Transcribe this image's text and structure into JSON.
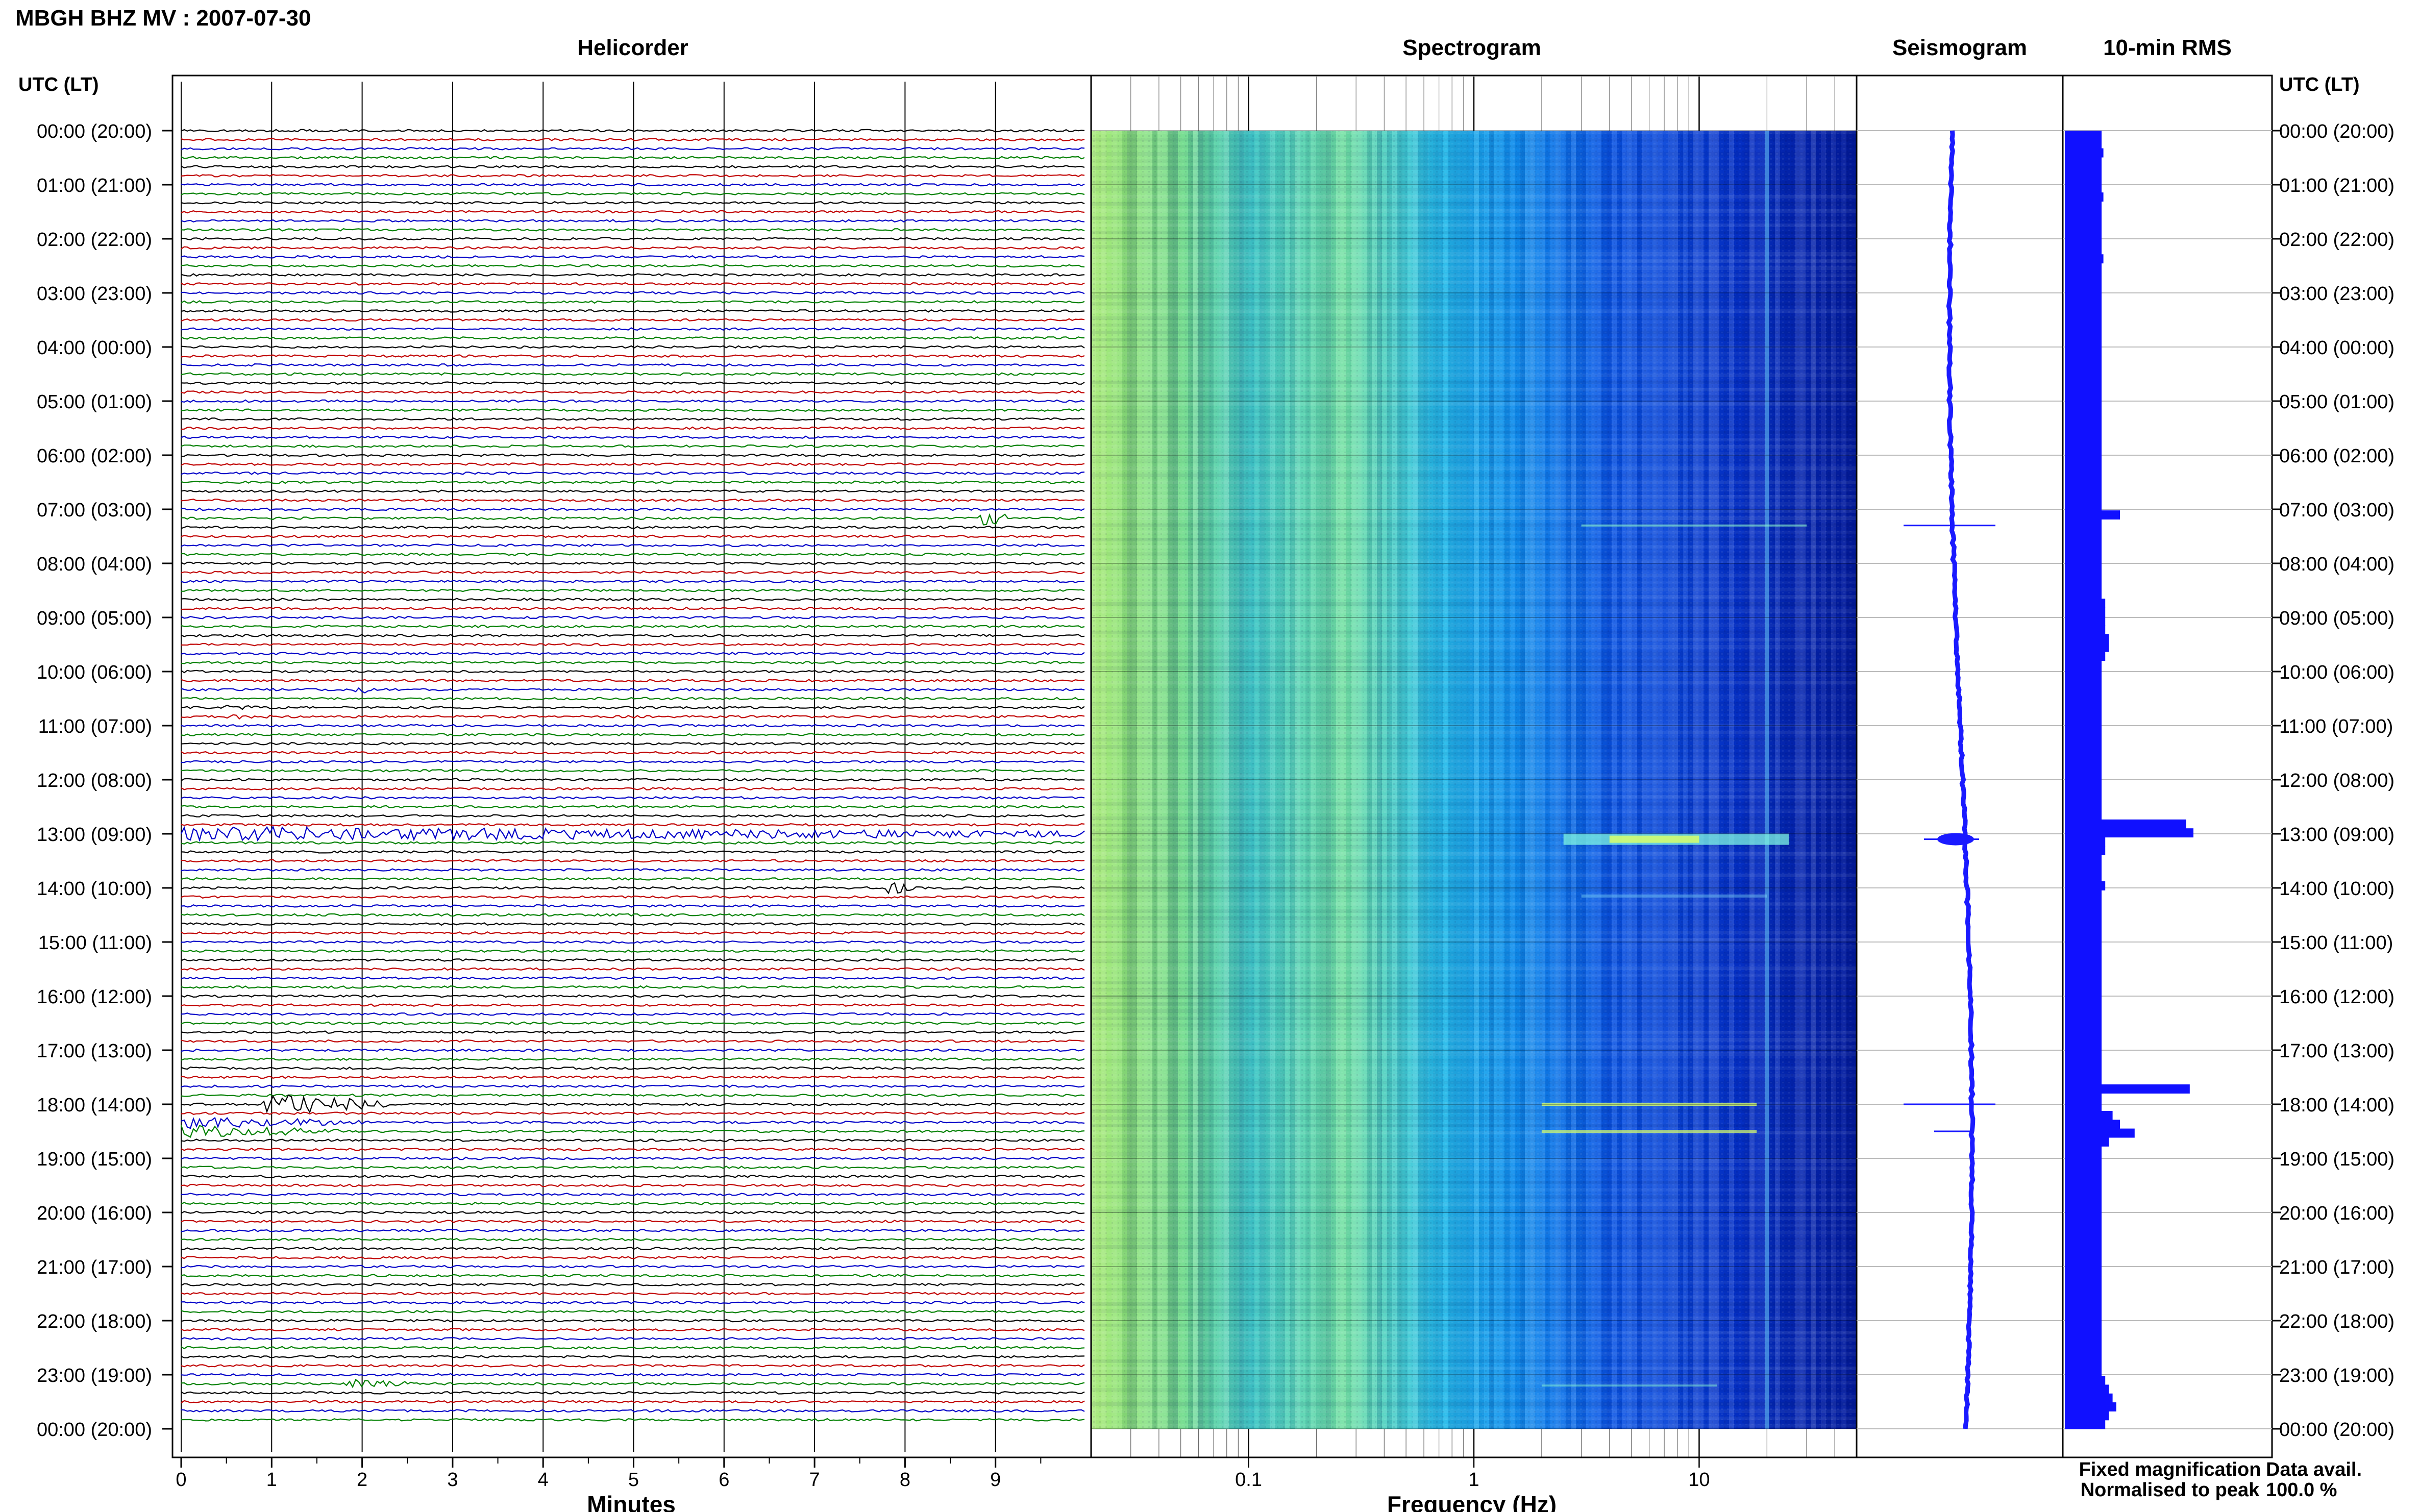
{
  "header": {
    "station_title": "MBGH BHZ MV : 2007-07-30",
    "time_axis_label": "UTC (LT)"
  },
  "footer": {
    "fixed_magnification": "Fixed magnification",
    "normalised_to_peak": "Normalised to peak",
    "data_avail_label": "Data avail.",
    "data_avail_value": "100.0 %"
  },
  "colors": {
    "trace_black": "#000000",
    "trace_red": "#c00000",
    "trace_blue": "#0000c8",
    "trace_green": "#008000",
    "rms_bar": "#1010ff",
    "fixed_magnification_text": "#1a1aff",
    "normalised_text": "#ff0000"
  },
  "chart_data": [
    {
      "type": "line",
      "title": "Helicorder",
      "xlabel": "Minutes",
      "x_ticks": [
        "0",
        "1",
        "2",
        "3",
        "4",
        "5",
        "6",
        "7",
        "8",
        "9"
      ],
      "xlim": [
        0,
        10
      ],
      "hour_labels": [
        "00:00 (20:00)",
        "01:00 (21:00)",
        "02:00 (22:00)",
        "03:00 (23:00)",
        "04:00 (00:00)",
        "05:00 (01:00)",
        "06:00 (02:00)",
        "07:00 (03:00)",
        "08:00 (04:00)",
        "09:00 (05:00)",
        "10:00 (06:00)",
        "11:00 (07:00)",
        "12:00 (08:00)",
        "13:00 (09:00)",
        "14:00 (10:00)",
        "15:00 (11:00)",
        "16:00 (12:00)",
        "17:00 (13:00)",
        "18:00 (14:00)",
        "19:00 (15:00)",
        "20:00 (16:00)",
        "21:00 (17:00)",
        "22:00 (18:00)",
        "23:00 (19:00)",
        "00:00 (20:00)"
      ],
      "traces_per_hour": 6,
      "trace_color_cycle": [
        "black",
        "red",
        "blue",
        "green"
      ],
      "events": [
        {
          "hour": 7.1,
          "minute": 8.9,
          "duration_min": 0.3,
          "amp": 3.0
        },
        {
          "hour": 10.4,
          "minute": 2.0,
          "duration_min": 0.2,
          "amp": 1.2
        },
        {
          "hour": 10.75,
          "minute": 0.6,
          "duration_min": 0.5,
          "amp": 0.8
        },
        {
          "hour": 13.0,
          "minute": 0.0,
          "duration_min": 10.0,
          "amp": 2.5
        },
        {
          "hour": 13.95,
          "minute": 7.9,
          "duration_min": 0.2,
          "amp": 2.0
        },
        {
          "hour": 18.0,
          "minute": 1.0,
          "duration_min": 1.3,
          "amp": 3.5
        },
        {
          "hour": 18.33,
          "minute": 0.0,
          "duration_min": 2.0,
          "amp": 2.0
        },
        {
          "hour": 18.5,
          "minute": 0.0,
          "duration_min": 1.8,
          "amp": 2.0
        },
        {
          "hour": 23.1,
          "minute": 1.9,
          "duration_min": 0.7,
          "amp": 1.5
        }
      ]
    },
    {
      "type": "heatmap",
      "title": "Spectrogram",
      "xlabel": "Frequency (Hz)",
      "x_scale": "log",
      "xlim": [
        0.02,
        50
      ],
      "x_tick_labels": [
        "0.1",
        "1",
        "10"
      ],
      "ylim_hours": [
        0,
        24
      ]
    },
    {
      "type": "line",
      "title": "Seismogram",
      "ylim_hours": [
        0,
        24
      ],
      "spikes_hours": [
        7.3,
        13.1,
        18.0,
        18.5
      ]
    },
    {
      "type": "bar",
      "title": "10-min RMS",
      "ylim_hours": [
        0,
        24
      ],
      "rms_values": [
        1.0,
        1.0,
        1.05,
        1.0,
        1.0,
        1.0,
        1.0,
        1.05,
        1.0,
        1.0,
        1.0,
        1.0,
        1.0,
        1.0,
        1.05,
        1.0,
        1.0,
        1.0,
        1.0,
        1.0,
        1.0,
        1.0,
        1.0,
        1.0,
        1.0,
        1.0,
        1.0,
        1.0,
        1.0,
        1.0,
        1.0,
        1.0,
        1.0,
        1.0,
        1.0,
        1.0,
        1.0,
        1.0,
        1.0,
        1.0,
        1.0,
        1.0,
        1.0,
        1.5,
        1.0,
        1.0,
        1.0,
        1.0,
        1.0,
        1.0,
        1.0,
        1.0,
        1.0,
        1.1,
        1.1,
        1.1,
        1.1,
        1.2,
        1.2,
        1.1,
        1.0,
        1.0,
        1.0,
        1.0,
        1.0,
        1.0,
        1.0,
        1.0,
        1.0,
        1.0,
        1.0,
        1.0,
        1.0,
        1.0,
        1.0,
        1.0,
        1.0,
        1.0,
        3.3,
        3.5,
        1.1,
        1.1,
        1.0,
        1.0,
        1.0,
        1.1,
        1.0,
        1.0,
        1.0,
        1.0,
        1.0,
        1.0,
        1.0,
        1.0,
        1.0,
        1.0,
        1.0,
        1.0,
        1.0,
        1.0,
        1.0,
        1.0,
        1.0,
        1.0,
        1.0,
        1.0,
        1.0,
        1.0,
        3.4,
        1.0,
        1.0,
        1.3,
        1.5,
        1.9,
        1.2,
        1.0,
        1.0,
        1.0,
        1.0,
        1.0,
        1.0,
        1.0,
        1.0,
        1.0,
        1.0,
        1.0,
        1.0,
        1.0,
        1.0,
        1.0,
        1.0,
        1.0,
        1.0,
        1.0,
        1.0,
        1.0,
        1.0,
        1.0,
        1.0,
        1.0,
        1.0,
        1.1,
        1.2,
        1.3,
        1.4,
        1.2,
        1.1
      ]
    }
  ]
}
